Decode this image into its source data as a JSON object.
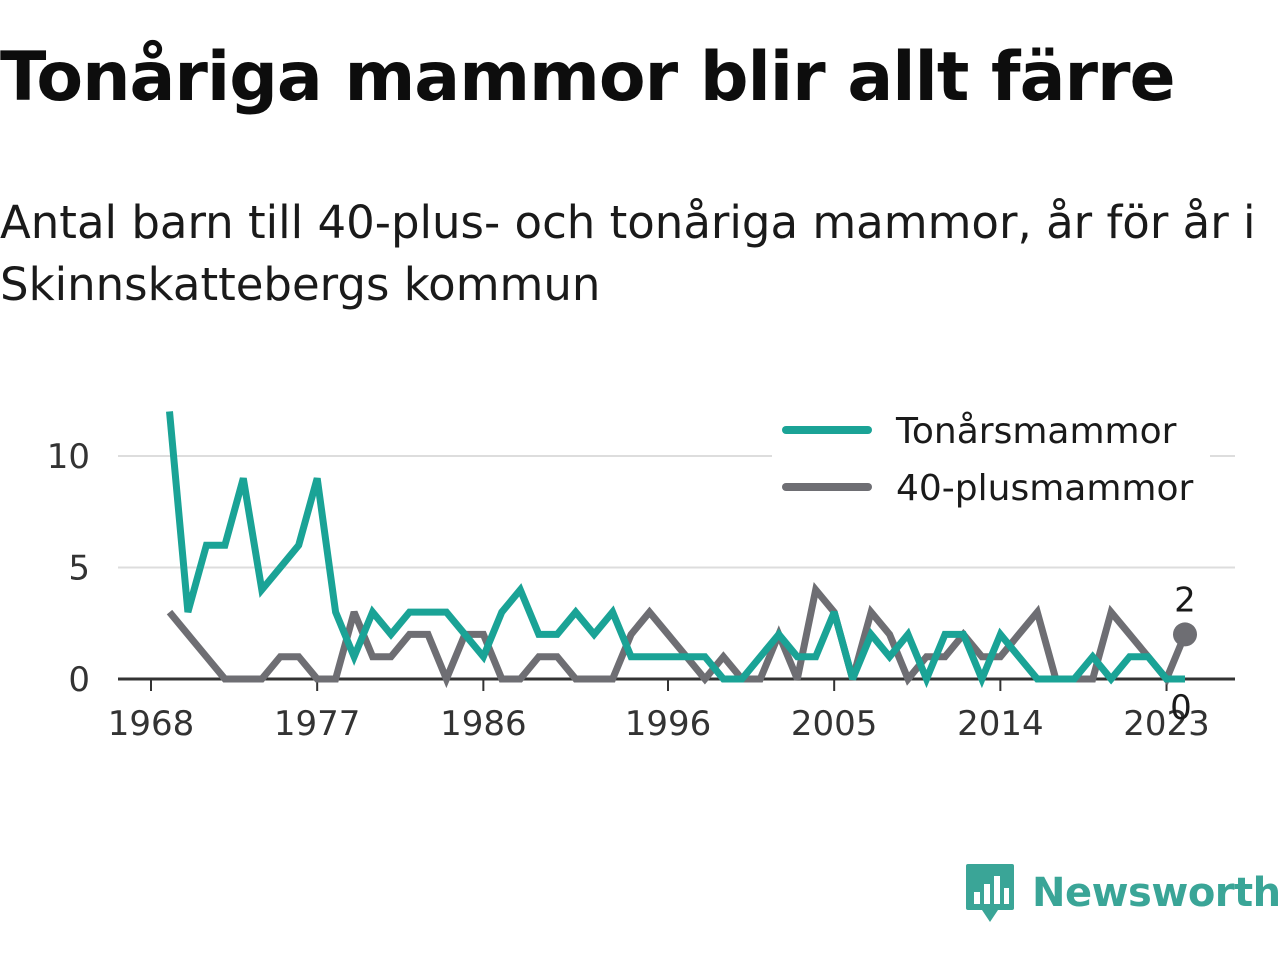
{
  "header": {
    "title": "Tonåriga mammor blir allt färre",
    "subtitle": "Antal barn till 40-plus- och tonåriga mammor, år för år i Skinnskattebergs kommun"
  },
  "brand": {
    "name": "Newsworthy",
    "icon": "newsworthy-logo-icon",
    "color": "#3aa597"
  },
  "chart_data": {
    "type": "line",
    "x": [
      1969,
      1970,
      1971,
      1972,
      1973,
      1974,
      1975,
      1976,
      1977,
      1978,
      1979,
      1980,
      1981,
      1982,
      1983,
      1984,
      1985,
      1986,
      1987,
      1988,
      1989,
      1990,
      1991,
      1992,
      1993,
      1994,
      1995,
      1996,
      1997,
      1998,
      1999,
      2000,
      2001,
      2002,
      2003,
      2004,
      2005,
      2006,
      2007,
      2008,
      2009,
      2010,
      2011,
      2012,
      2013,
      2014,
      2015,
      2016,
      2017,
      2018,
      2019,
      2020,
      2021,
      2022,
      2023,
      2024
    ],
    "series": [
      {
        "name": "Tonårsmammor",
        "color": "#1aa396",
        "values": [
          12,
          3,
          6,
          6,
          9,
          4,
          5,
          6,
          9,
          3,
          1,
          3,
          2,
          3,
          3,
          3,
          2,
          1,
          3,
          4,
          2,
          2,
          3,
          2,
          3,
          1,
          1,
          1,
          1,
          1,
          0,
          0,
          1,
          2,
          1,
          1,
          3,
          0,
          2,
          1,
          2,
          0,
          2,
          2,
          0,
          2,
          1,
          0,
          0,
          0,
          1,
          0,
          1,
          1,
          0,
          0
        ]
      },
      {
        "name": "40-plusmammor",
        "color": "#6e6e73",
        "values": [
          3,
          2,
          1,
          0,
          0,
          0,
          1,
          1,
          0,
          0,
          3,
          1,
          1,
          2,
          2,
          0,
          2,
          2,
          0,
          0,
          1,
          1,
          0,
          0,
          0,
          2,
          3,
          2,
          1,
          0,
          1,
          0,
          0,
          2,
          0,
          4,
          3,
          0,
          3,
          2,
          0,
          1,
          1,
          2,
          1,
          1,
          2,
          3,
          0,
          0,
          0,
          3,
          2,
          1,
          0,
          2
        ]
      }
    ],
    "x_ticks": [
      "1968",
      "1977",
      "1986",
      "1996",
      "2005",
      "2014",
      "2023"
    ],
    "y_ticks": [
      "0",
      "5",
      "10"
    ],
    "ylim": [
      0,
      12
    ],
    "end_labels": [
      "2",
      "0"
    ],
    "grid": true,
    "legend_position": "top-right"
  }
}
